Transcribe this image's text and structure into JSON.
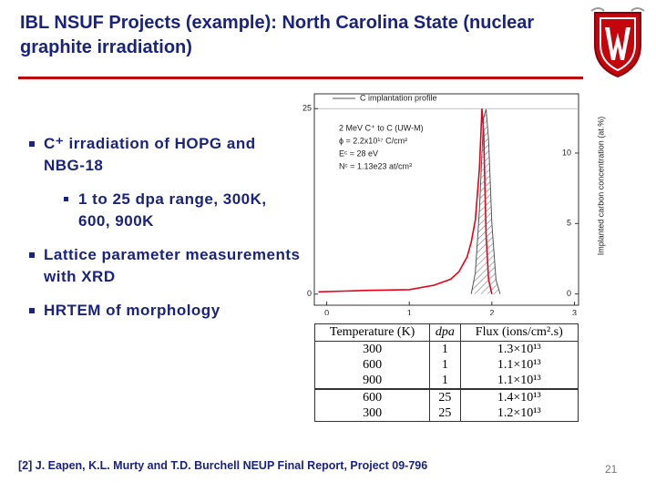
{
  "header": {
    "title": "IBL NSUF Projects (example): North Carolina State (nuclear graphite irradiation)"
  },
  "bullets": [
    {
      "level": 1,
      "text": "C⁺ irradiation of HOPG and NBG-18"
    },
    {
      "level": 2,
      "text": "1 to 25 dpa range, 300K, 600, 900K"
    },
    {
      "level": 1,
      "text": "Lattice parameter measurements with XRD"
    },
    {
      "level": 1,
      "text": "HRTEM of morphology"
    }
  ],
  "chart_data": {
    "type": "line",
    "legend": "C implantation profile",
    "annotations": [
      "2 MeV C⁺ to C (UW-M)",
      "ϕ = 2.2x10¹⁷ C/cm²",
      "Eᶜ = 28 eV",
      "Nᶜ = 1.13e23 at/cm³"
    ],
    "y2label": "Implanted carbon concentration (at.%)",
    "x": [
      -0.1,
      0.5,
      1,
      1.3,
      1.5,
      1.6,
      1.7,
      1.75,
      1.8,
      1.85,
      1.88,
      1.9,
      1.93,
      1.96,
      2,
      2.05,
      2.1
    ],
    "series": [
      {
        "color": "#e8001c",
        "values": [
          0.3,
          0.5,
          0.6,
          1.2,
          2,
          3,
          5,
          7,
          10,
          17,
          25,
          22,
          8,
          2,
          0,
          null,
          null
        ]
      },
      {
        "name": "C implantation profile",
        "color": "#555555",
        "axis": "y2",
        "values": [
          null,
          null,
          null,
          null,
          null,
          null,
          null,
          0,
          1.5,
          6,
          10,
          12.5,
          13.1,
          11,
          5,
          1,
          0
        ]
      }
    ],
    "xlim": [
      -0.15,
      3.05
    ],
    "xticks": [
      0,
      1,
      2,
      3
    ],
    "ylim": [
      -1.5,
      27
    ],
    "yticks": [
      0,
      25
    ],
    "y2lim": [
      -0.8,
      14.2
    ],
    "y2ticks": [
      0,
      5,
      10
    ]
  },
  "table": {
    "header": [
      "Temperature (K)",
      "dpa",
      "Flux (ions/cm².s)"
    ],
    "rows": [
      [
        "300",
        "1",
        "1.3×10¹³"
      ],
      [
        "600",
        "1",
        "1.1×10¹³"
      ],
      [
        "900",
        "1",
        "1.1×10¹³"
      ],
      [
        "600",
        "25",
        "1.4×10¹³"
      ],
      [
        "300",
        "25",
        "1.2×10¹³"
      ]
    ]
  },
  "reference": "[2] J. Eapen, K.L. Murty and T.D. Burchell NEUP Final Report, Project 09-796",
  "page_number": "21"
}
